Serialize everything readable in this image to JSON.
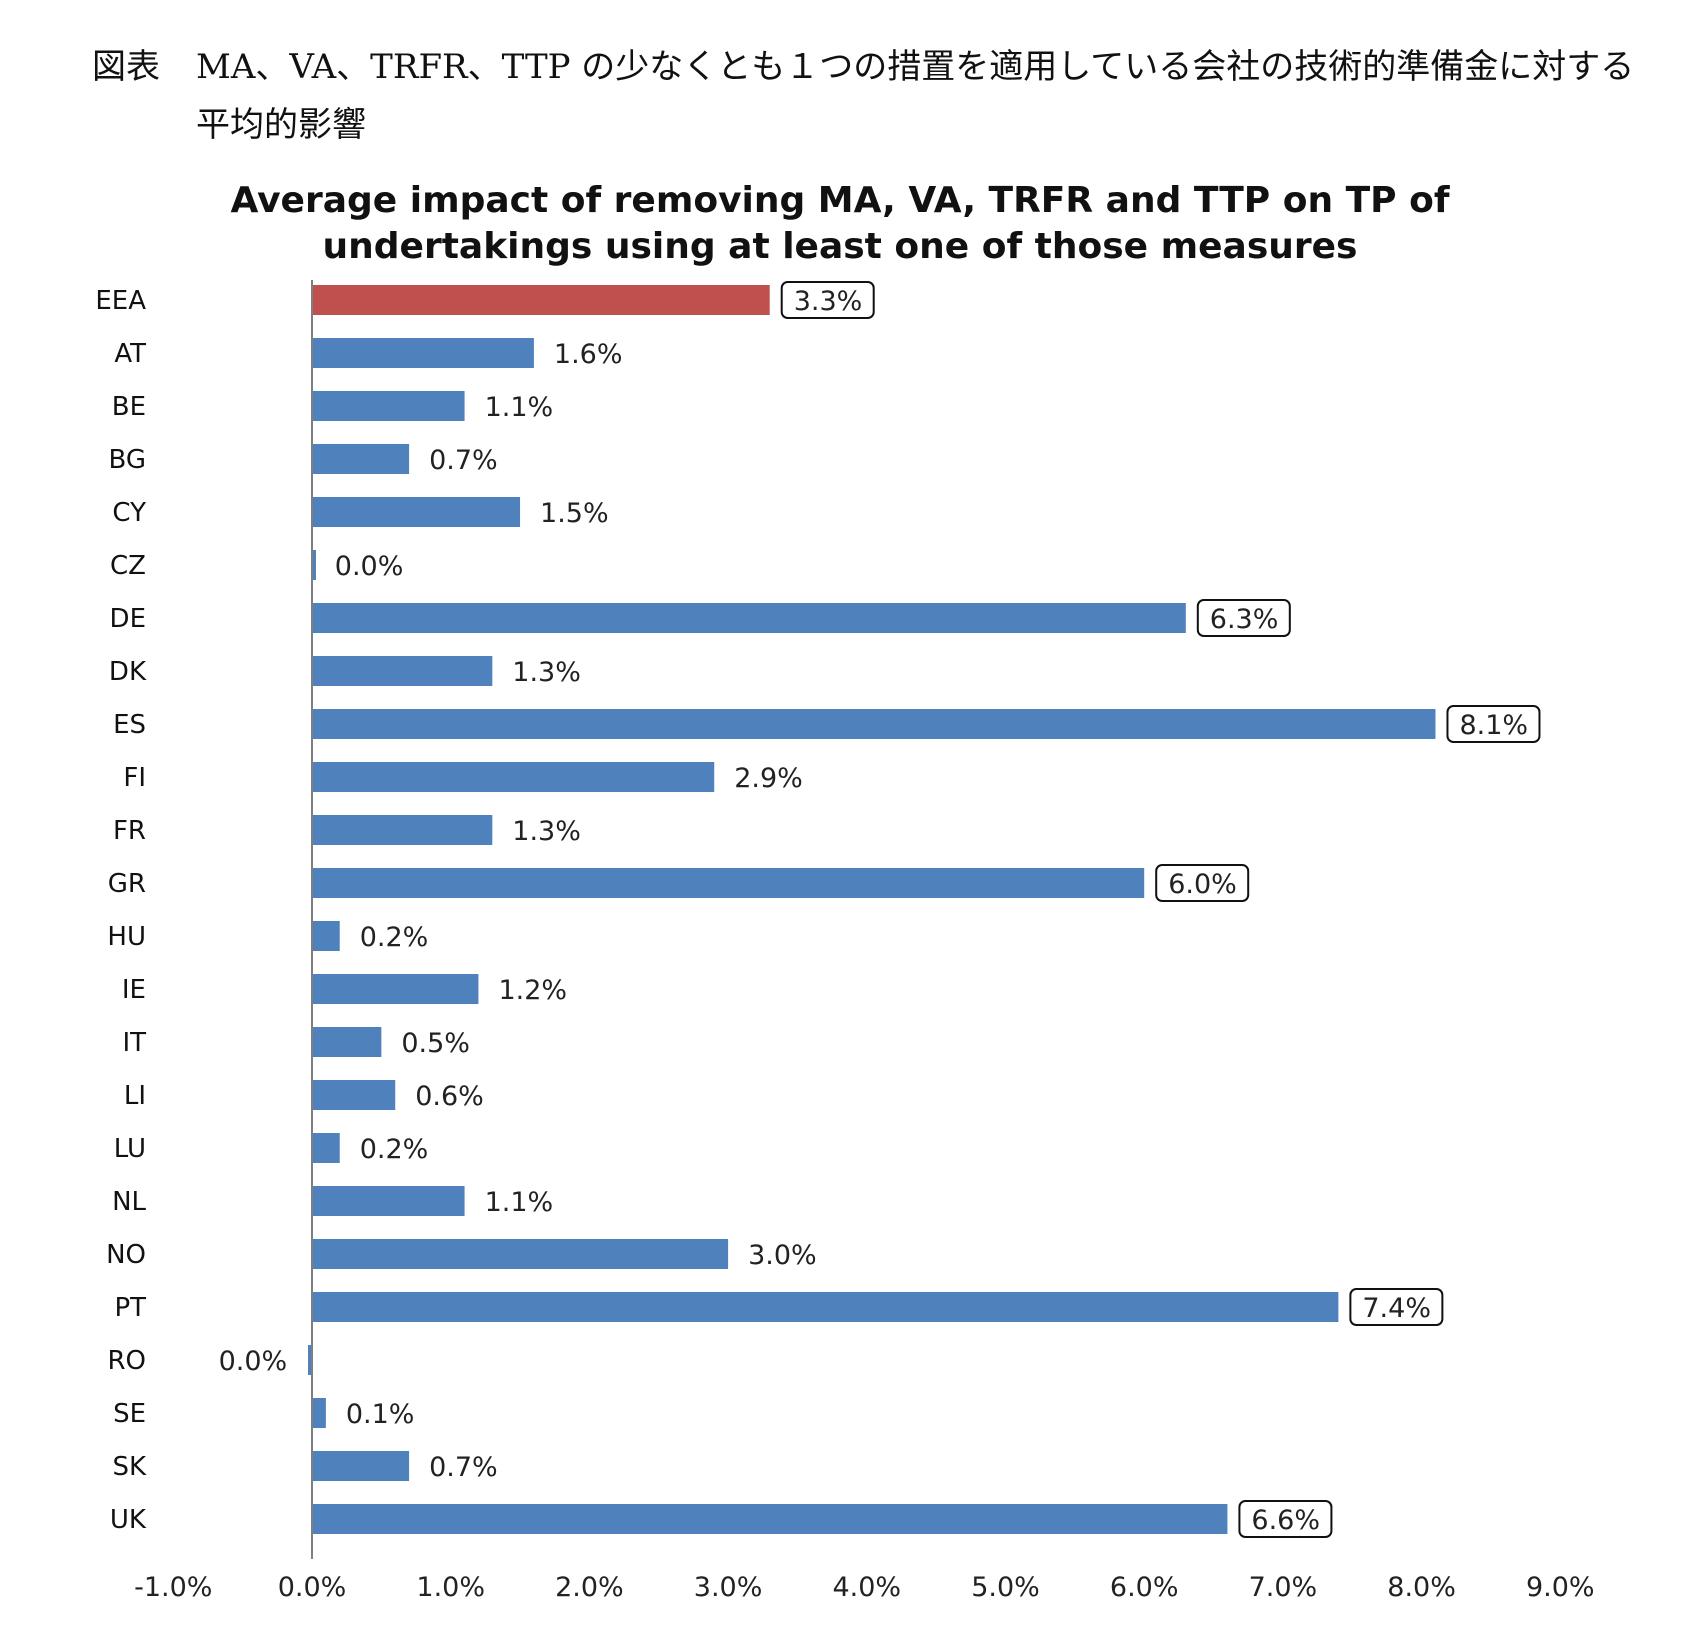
{
  "caption": {
    "label": "図表",
    "line1": "MA、VA、TRFR、TTP の少なくとも１つの措置を適用している会社の技術的準備金に対する",
    "line2": "平均的影響"
  },
  "chart_data": {
    "type": "bar",
    "orientation": "horizontal",
    "title_lines": [
      "Average impact of removing MA, VA, TRFR and TTP on TP of",
      "undertakings using at least one of those measures"
    ],
    "xlabel": "",
    "ylabel": "",
    "xlim": [
      -1.0,
      9.0
    ],
    "x_ticks": [
      -1.0,
      0.0,
      1.0,
      2.0,
      3.0,
      4.0,
      5.0,
      6.0,
      7.0,
      8.0,
      9.0
    ],
    "x_tick_labels": [
      "-1.0%",
      "0.0%",
      "1.0%",
      "2.0%",
      "3.0%",
      "4.0%",
      "5.0%",
      "6.0%",
      "7.0%",
      "8.0%",
      "9.0%"
    ],
    "grid": false,
    "legend": "none",
    "categories": [
      "EEA",
      "AT",
      "BE",
      "BG",
      "CY",
      "CZ",
      "DE",
      "DK",
      "ES",
      "FI",
      "FR",
      "GR",
      "HU",
      "IE",
      "IT",
      "LI",
      "LU",
      "NL",
      "NO",
      "PT",
      "RO",
      "SE",
      "SK",
      "UK"
    ],
    "values": [
      3.3,
      1.6,
      1.1,
      0.7,
      1.5,
      0.02,
      6.3,
      1.3,
      8.1,
      2.9,
      1.3,
      6.0,
      0.2,
      1.2,
      0.5,
      0.6,
      0.2,
      1.1,
      3.0,
      7.4,
      -0.02,
      0.1,
      0.7,
      6.6
    ],
    "data_labels": [
      "3.3%",
      "1.6%",
      "1.1%",
      "0.7%",
      "1.5%",
      "0.0%",
      "6.3%",
      "1.3%",
      "8.1%",
      "2.9%",
      "1.3%",
      "6.0%",
      "0.2%",
      "1.2%",
      "0.5%",
      "0.6%",
      "0.2%",
      "1.1%",
      "3.0%",
      "7.4%",
      "0.0%",
      "0.1%",
      "0.7%",
      "6.6%"
    ],
    "boxed_labels": [
      "EEA",
      "DE",
      "ES",
      "GR",
      "PT",
      "UK"
    ],
    "highlight": "EEA",
    "colors": {
      "default": "#4f81bd",
      "highlight": "#c0504d"
    }
  }
}
